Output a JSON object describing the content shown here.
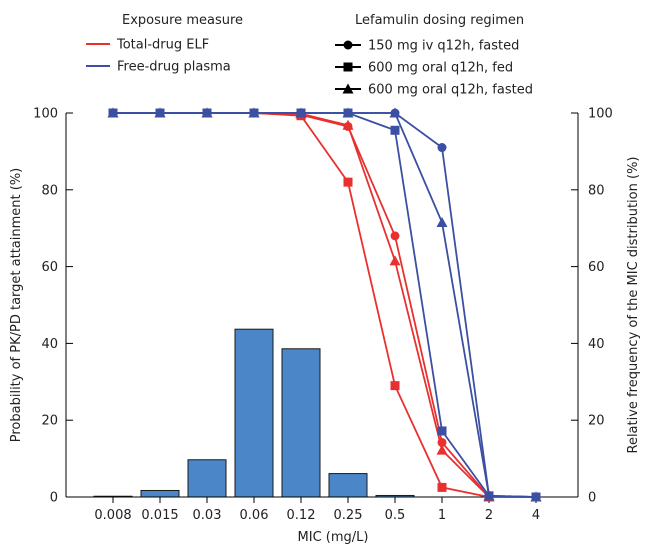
{
  "chart_data": {
    "type": "line",
    "xlabel": "MIC (mg/L)",
    "ylabel_left": "Probability of PK/PD target attainment (%)",
    "ylabel_right": "Relative frequency of the MIC distribution (%)",
    "categories": [
      "0.008",
      "0.015",
      "0.03",
      "0.06",
      "0.12",
      "0.25",
      "0.5",
      "1",
      "2",
      "4"
    ],
    "ylim": [
      0,
      100
    ],
    "yticks": [
      0,
      20,
      40,
      60,
      80,
      100
    ],
    "legend": {
      "exposure_title": "Exposure measure",
      "exposure_items": [
        {
          "label": "Total-drug ELF",
          "color": "#e8312f"
        },
        {
          "label": "Free-drug plasma",
          "color": "#3b4fa3"
        }
      ],
      "regimen_title": "Lefamulin dosing regimen",
      "regimen_items": [
        {
          "label": "150 mg iv q12h, fasted",
          "marker": "circle"
        },
        {
          "label": "600 mg oral q12h, fed",
          "marker": "square"
        },
        {
          "label": "600 mg oral q12h, fasted",
          "marker": "triangle"
        }
      ]
    },
    "bars": {
      "color": "#4a86c8",
      "values": [
        0.2,
        1.7,
        9.7,
        43.7,
        38.6,
        6.1,
        0.4,
        0,
        0,
        0
      ]
    },
    "series": [
      {
        "exposure": "Total-drug ELF",
        "regimen": "150 mg iv q12h, fasted",
        "color": "#e8312f",
        "marker": "circle",
        "values": [
          100,
          100,
          100,
          100,
          99.5,
          96.5,
          68,
          14.2,
          0,
          0
        ]
      },
      {
        "exposure": "Total-drug ELF",
        "regimen": "600 mg oral q12h, fed",
        "color": "#e8312f",
        "marker": "square",
        "values": [
          100,
          100,
          100,
          100,
          99.3,
          82,
          29,
          2.5,
          0,
          0
        ]
      },
      {
        "exposure": "Total-drug ELF",
        "regimen": "600 mg oral q12h, fasted",
        "color": "#e8312f",
        "marker": "triangle",
        "values": [
          100,
          100,
          100,
          100,
          99.8,
          96.8,
          61.5,
          12.2,
          0,
          0
        ]
      },
      {
        "exposure": "Free-drug plasma",
        "regimen": "150 mg iv q12h, fasted",
        "color": "#3b4fa3",
        "marker": "circle",
        "values": [
          100,
          100,
          100,
          100,
          100,
          100,
          100,
          91,
          0.3,
          0
        ]
      },
      {
        "exposure": "Free-drug plasma",
        "regimen": "600 mg oral q12h, fed",
        "color": "#3b4fa3",
        "marker": "square",
        "values": [
          100,
          100,
          100,
          100,
          100,
          100,
          95.5,
          17.2,
          0.3,
          0
        ]
      },
      {
        "exposure": "Free-drug plasma",
        "regimen": "600 mg oral q12h, fasted",
        "color": "#3b4fa3",
        "marker": "triangle",
        "values": [
          100,
          100,
          100,
          100,
          100,
          100,
          100,
          71.5,
          0.3,
          0
        ]
      }
    ]
  }
}
